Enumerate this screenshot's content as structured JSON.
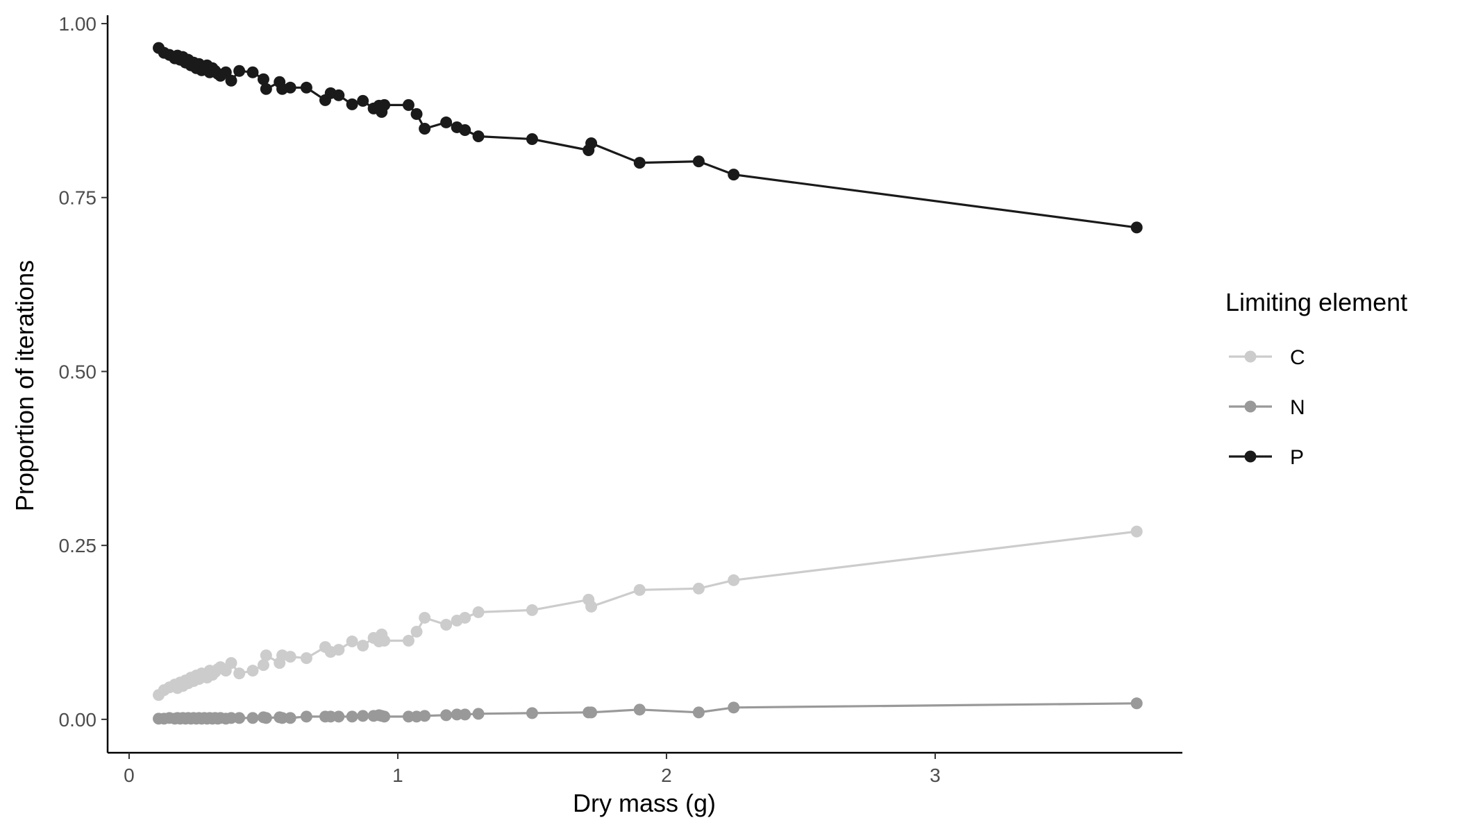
{
  "chart_data": {
    "type": "line",
    "xlabel": "Dry mass (g)",
    "ylabel": "Proportion of iterations",
    "xlim": [
      -0.08,
      3.92
    ],
    "ylim": [
      -0.048,
      1.012
    ],
    "x_ticks": [
      0,
      1,
      2,
      3
    ],
    "x_tick_labels": [
      "0",
      "1",
      "2",
      "3"
    ],
    "y_ticks": [
      0,
      0.25,
      0.5,
      0.75,
      1
    ],
    "y_tick_labels": [
      "0.00",
      "0.25",
      "0.50",
      "0.75",
      "1.00"
    ],
    "grid": false,
    "legend": {
      "title": "Limiting element",
      "placement": "right"
    },
    "series": [
      {
        "name": "C",
        "color": "#cccccc",
        "x": [
          0.11,
          0.13,
          0.15,
          0.17,
          0.18,
          0.19,
          0.2,
          0.21,
          0.22,
          0.23,
          0.24,
          0.25,
          0.26,
          0.27,
          0.28,
          0.29,
          0.3,
          0.31,
          0.32,
          0.33,
          0.34,
          0.36,
          0.38,
          0.41,
          0.46,
          0.5,
          0.51,
          0.56,
          0.57,
          0.6,
          0.66,
          0.73,
          0.75,
          0.78,
          0.83,
          0.87,
          0.91,
          0.93,
          0.94,
          0.95,
          1.04,
          1.07,
          1.1,
          1.18,
          1.22,
          1.25,
          1.3,
          1.5,
          1.71,
          1.72,
          1.9,
          2.12,
          2.25,
          3.75
        ],
        "y": [
          0.035,
          0.042,
          0.046,
          0.05,
          0.045,
          0.053,
          0.048,
          0.056,
          0.052,
          0.06,
          0.055,
          0.063,
          0.058,
          0.066,
          0.062,
          0.06,
          0.07,
          0.064,
          0.068,
          0.072,
          0.075,
          0.07,
          0.081,
          0.066,
          0.07,
          0.078,
          0.092,
          0.081,
          0.092,
          0.09,
          0.088,
          0.104,
          0.097,
          0.1,
          0.112,
          0.106,
          0.117,
          0.112,
          0.122,
          0.113,
          0.113,
          0.126,
          0.146,
          0.136,
          0.142,
          0.146,
          0.154,
          0.157,
          0.172,
          0.162,
          0.186,
          0.188,
          0.2,
          0.27
        ]
      },
      {
        "name": "N",
        "color": "#999999",
        "x": [
          0.11,
          0.13,
          0.15,
          0.17,
          0.18,
          0.19,
          0.2,
          0.21,
          0.22,
          0.23,
          0.24,
          0.25,
          0.26,
          0.27,
          0.28,
          0.29,
          0.3,
          0.31,
          0.32,
          0.33,
          0.34,
          0.36,
          0.38,
          0.41,
          0.46,
          0.5,
          0.51,
          0.56,
          0.57,
          0.6,
          0.66,
          0.73,
          0.75,
          0.78,
          0.83,
          0.87,
          0.91,
          0.93,
          0.94,
          0.95,
          1.04,
          1.07,
          1.1,
          1.18,
          1.22,
          1.25,
          1.3,
          1.5,
          1.71,
          1.72,
          1.9,
          2.12,
          2.25,
          3.75
        ],
        "y": [
          0.001,
          0.001,
          0.002,
          0.001,
          0.002,
          0.001,
          0.002,
          0.001,
          0.002,
          0.001,
          0.002,
          0.001,
          0.002,
          0.001,
          0.002,
          0.001,
          0.002,
          0.001,
          0.002,
          0.001,
          0.002,
          0.001,
          0.002,
          0.002,
          0.002,
          0.003,
          0.002,
          0.003,
          0.002,
          0.002,
          0.004,
          0.004,
          0.004,
          0.004,
          0.004,
          0.005,
          0.005,
          0.006,
          0.005,
          0.004,
          0.004,
          0.004,
          0.005,
          0.006,
          0.007,
          0.007,
          0.008,
          0.009,
          0.01,
          0.01,
          0.014,
          0.01,
          0.017,
          0.023
        ]
      },
      {
        "name": "P",
        "color": "#1a1a1a",
        "x": [
          0.11,
          0.13,
          0.15,
          0.17,
          0.18,
          0.19,
          0.2,
          0.21,
          0.22,
          0.23,
          0.24,
          0.25,
          0.26,
          0.27,
          0.28,
          0.29,
          0.3,
          0.31,
          0.32,
          0.33,
          0.34,
          0.36,
          0.38,
          0.41,
          0.46,
          0.5,
          0.51,
          0.56,
          0.57,
          0.6,
          0.66,
          0.73,
          0.75,
          0.78,
          0.83,
          0.87,
          0.91,
          0.93,
          0.94,
          0.95,
          1.04,
          1.07,
          1.1,
          1.18,
          1.22,
          1.25,
          1.3,
          1.5,
          1.71,
          1.72,
          1.9,
          2.12,
          2.25,
          3.75
        ],
        "y": [
          0.965,
          0.958,
          0.955,
          0.95,
          0.954,
          0.948,
          0.952,
          0.944,
          0.948,
          0.94,
          0.944,
          0.936,
          0.942,
          0.933,
          0.938,
          0.94,
          0.93,
          0.936,
          0.932,
          0.928,
          0.925,
          0.93,
          0.918,
          0.932,
          0.93,
          0.92,
          0.906,
          0.916,
          0.906,
          0.908,
          0.908,
          0.89,
          0.9,
          0.897,
          0.884,
          0.889,
          0.878,
          0.882,
          0.873,
          0.883,
          0.883,
          0.87,
          0.849,
          0.858,
          0.851,
          0.847,
          0.838,
          0.834,
          0.818,
          0.828,
          0.8,
          0.802,
          0.783,
          0.707
        ]
      }
    ]
  }
}
